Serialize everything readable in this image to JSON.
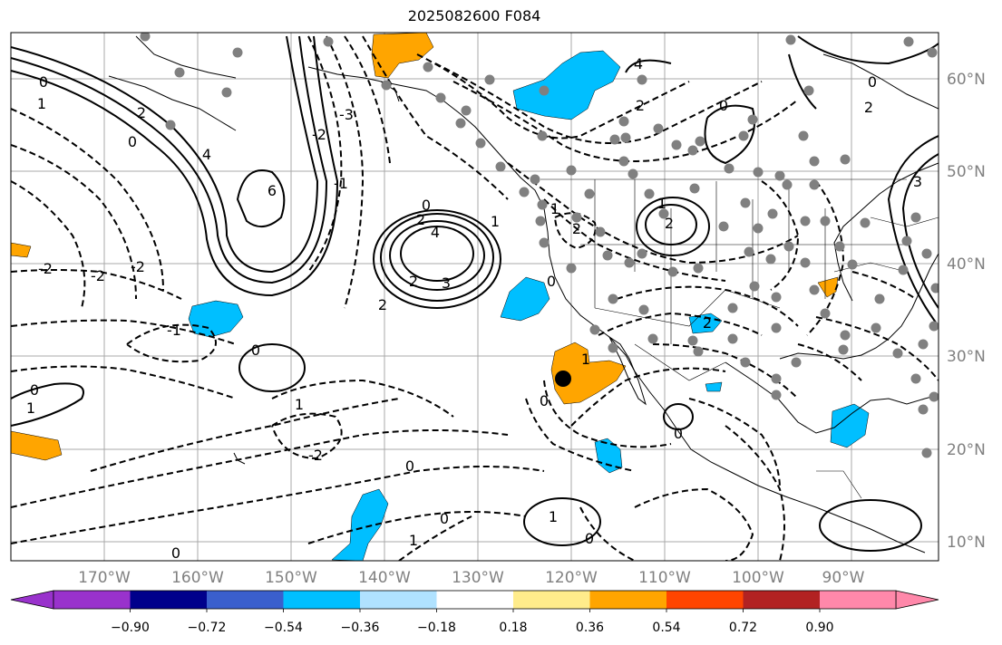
{
  "title": "2025082600 F084",
  "lon_labels": [
    "170°W",
    "160°W",
    "150°W",
    "140°W",
    "130°W",
    "120°W",
    "110°W",
    "100°W",
    "90°W"
  ],
  "lat_labels": [
    "60°N",
    "50°N",
    "40°N",
    "30°N",
    "20°N",
    "10°N"
  ],
  "colorbar": {
    "tick_labels": [
      "−0.90",
      "−0.72",
      "−0.54",
      "−0.36",
      "−0.18",
      "0.18",
      "0.36",
      "0.54",
      "0.72",
      "0.90"
    ],
    "colors": [
      "#9932cc",
      "#00008b",
      "#3a5fcd",
      "#00bfff",
      "#b0e2ff",
      "#ffffff",
      "#ffec8b",
      "#ffa500",
      "#ff4500",
      "#b22222",
      "#ff88aa"
    ]
  },
  "contour_labels": [
    {
      "text": "0"
    },
    {
      "text": "1"
    },
    {
      "text": "2"
    },
    {
      "text": "3"
    },
    {
      "text": "4"
    },
    {
      "text": "-1"
    },
    {
      "text": "-2"
    },
    {
      "text": "-3"
    },
    {
      "text": "6"
    }
  ],
  "marker": {
    "name": "black-dot"
  },
  "colors": {
    "land_outline": "#000000",
    "gridline": "#a9a9a9",
    "station": "#808080",
    "positive": "#ffa500",
    "negative": "#00bfff"
  }
}
